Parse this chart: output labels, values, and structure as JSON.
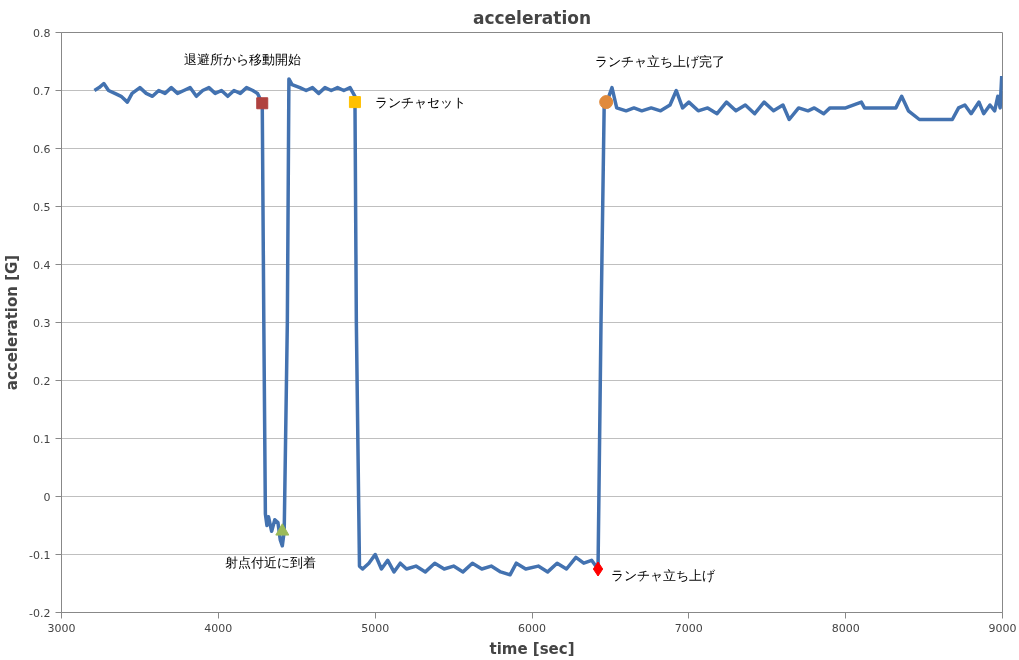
{
  "chart_data": {
    "type": "line",
    "title": "acceleration",
    "xlabel": "time [sec]",
    "ylabel": "acceleration [G]",
    "xlim": [
      3000,
      9000
    ],
    "xticks": [
      3000,
      4000,
      5000,
      6000,
      7000,
      8000,
      9000
    ],
    "ylim": [
      -0.2,
      0.8
    ],
    "yticks": [
      -0.2,
      -0.1,
      0,
      0.1,
      0.2,
      0.3,
      0.4,
      0.5,
      0.6,
      0.7,
      0.8
    ],
    "grid": "y",
    "line_style": "solid",
    "series": [
      {
        "color": "#4372b0",
        "marker": "none",
        "x": [
          3210,
          3240,
          3270,
          3300,
          3340,
          3380,
          3420,
          3450,
          3500,
          3540,
          3580,
          3620,
          3660,
          3700,
          3740,
          3780,
          3820,
          3860,
          3900,
          3940,
          3980,
          4020,
          4060,
          4100,
          4140,
          4180,
          4220,
          4250,
          4280,
          4290,
          4300,
          4310,
          4320,
          4340,
          4360,
          4380,
          4395,
          4408,
          4420,
          4440,
          4450,
          4470,
          4520,
          4560,
          4600,
          4640,
          4680,
          4720,
          4760,
          4800,
          4840,
          4871,
          4880,
          4900,
          4920,
          4960,
          5000,
          5040,
          5080,
          5120,
          5160,
          5200,
          5260,
          5320,
          5380,
          5440,
          5500,
          5560,
          5620,
          5680,
          5740,
          5800,
          5860,
          5900,
          5960,
          6040,
          6100,
          6160,
          6220,
          6280,
          6330,
          6380,
          6421,
          6440,
          6460,
          6490,
          6510,
          6540,
          6600,
          6650,
          6700,
          6760,
          6820,
          6880,
          6920,
          6960,
          7000,
          7060,
          7120,
          7180,
          7240,
          7300,
          7360,
          7420,
          7480,
          7540,
          7600,
          7640,
          7700,
          7760,
          7800,
          7860,
          7900,
          8000,
          8100,
          8120,
          8320,
          8357,
          8400,
          8470,
          8680,
          8720,
          8760,
          8800,
          8850,
          8880,
          8920,
          8950,
          8970,
          8985,
          8995
        ],
        "values": [
          0.7,
          0.705,
          0.712,
          0.7,
          0.695,
          0.69,
          0.68,
          0.695,
          0.705,
          0.695,
          0.69,
          0.7,
          0.695,
          0.705,
          0.695,
          0.7,
          0.705,
          0.69,
          0.7,
          0.705,
          0.695,
          0.7,
          0.69,
          0.7,
          0.695,
          0.705,
          0.7,
          0.695,
          0.678,
          0.3,
          -0.03,
          -0.05,
          -0.035,
          -0.06,
          -0.04,
          -0.045,
          -0.075,
          -0.085,
          -0.06,
          0.3,
          0.72,
          0.71,
          0.705,
          0.7,
          0.705,
          0.695,
          0.705,
          0.7,
          0.705,
          0.7,
          0.705,
          0.69,
          0.3,
          -0.12,
          -0.125,
          -0.115,
          -0.1,
          -0.125,
          -0.11,
          -0.13,
          -0.115,
          -0.125,
          -0.12,
          -0.13,
          -0.115,
          -0.125,
          -0.12,
          -0.13,
          -0.115,
          -0.125,
          -0.12,
          -0.13,
          -0.135,
          -0.115,
          -0.125,
          -0.12,
          -0.13,
          -0.115,
          -0.125,
          -0.105,
          -0.115,
          -0.11,
          -0.125,
          0.3,
          0.67,
          0.69,
          0.705,
          0.67,
          0.665,
          0.67,
          0.665,
          0.67,
          0.665,
          0.675,
          0.7,
          0.67,
          0.68,
          0.665,
          0.67,
          0.66,
          0.68,
          0.665,
          0.675,
          0.66,
          0.68,
          0.665,
          0.675,
          0.65,
          0.67,
          0.665,
          0.67,
          0.66,
          0.67,
          0.67,
          0.68,
          0.67,
          0.67,
          0.69,
          0.665,
          0.65,
          0.65,
          0.67,
          0.675,
          0.66,
          0.68,
          0.66,
          0.675,
          0.665,
          0.69,
          0.67,
          0.725
        ]
      },
      {
        "type": "scatter",
        "color": "#b0423f",
        "marker": "square",
        "x": [
          4280
        ],
        "values": [
          0.678
        ]
      },
      {
        "type": "scatter",
        "color": "#9bbb59",
        "marker": "triangle",
        "x": [
          4408
        ],
        "values": [
          -0.06
        ]
      },
      {
        "type": "scatter",
        "color": "#ffc000",
        "marker": "square",
        "x": [
          4871
        ],
        "values": [
          0.68
        ]
      },
      {
        "type": "scatter",
        "color": "#ff0000",
        "marker": "diamond",
        "x": [
          6421
        ],
        "values": [
          -0.125
        ]
      },
      {
        "type": "scatter",
        "color": "#e08a3c",
        "marker": "circle",
        "x": [
          6473
        ],
        "values": [
          0.68
        ]
      }
    ],
    "annotations": [
      {
        "text": "退避所から移動開始",
        "x": 4280,
        "y": 0.678
      },
      {
        "text": "射点付近に到着",
        "x": 4408,
        "y": -0.06
      },
      {
        "text": "ランチャセット",
        "x": 4871,
        "y": 0.68
      },
      {
        "text": "ランチャ立ち上げ",
        "x": 6421,
        "y": -0.125
      },
      {
        "text": "ランチャ立ち上げ完了",
        "x": 6473,
        "y": 0.68
      }
    ]
  }
}
